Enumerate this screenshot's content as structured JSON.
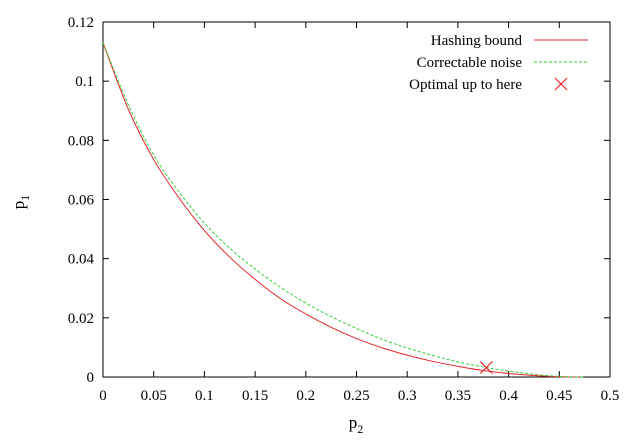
{
  "chart_data": {
    "type": "line",
    "xlabel": "p",
    "xlabel_sub": "2",
    "ylabel": "p",
    "ylabel_sub": "1",
    "xlim": [
      0,
      0.5
    ],
    "ylim": [
      0,
      0.12
    ],
    "grid": false,
    "legend_position": "top-right",
    "x_ticks": [
      {
        "value": 0,
        "label": "0"
      },
      {
        "value": 0.05,
        "label": "0.05"
      },
      {
        "value": 0.1,
        "label": "0.1"
      },
      {
        "value": 0.15,
        "label": "0.15"
      },
      {
        "value": 0.2,
        "label": "0.2"
      },
      {
        "value": 0.25,
        "label": "0.25"
      },
      {
        "value": 0.3,
        "label": "0.3"
      },
      {
        "value": 0.35,
        "label": "0.35"
      },
      {
        "value": 0.4,
        "label": "0.4"
      },
      {
        "value": 0.45,
        "label": "0.45"
      },
      {
        "value": 0.5,
        "label": "0.5"
      }
    ],
    "y_ticks": [
      {
        "value": 0,
        "label": "0"
      },
      {
        "value": 0.02,
        "label": "0.02"
      },
      {
        "value": 0.04,
        "label": "0.04"
      },
      {
        "value": 0.06,
        "label": "0.06"
      },
      {
        "value": 0.08,
        "label": "0.08"
      },
      {
        "value": 0.1,
        "label": "0.1"
      },
      {
        "value": 0.12,
        "label": "0.12"
      }
    ],
    "series": [
      {
        "name": "Hashing bound",
        "kind": "line",
        "style": "solid",
        "color": "#e8262c",
        "x": [
          0,
          0.025,
          0.05,
          0.075,
          0.1,
          0.125,
          0.15,
          0.175,
          0.2,
          0.225,
          0.25,
          0.275,
          0.3,
          0.325,
          0.35,
          0.375,
          0.4,
          0.425,
          0.45,
          0.47
        ],
        "y": [
          0.113,
          0.0905,
          0.0735,
          0.0605,
          0.0495,
          0.0405,
          0.033,
          0.0265,
          0.0213,
          0.0168,
          0.013,
          0.0099,
          0.0074,
          0.0053,
          0.0036,
          0.0022,
          0.0012,
          0.0005,
          0.0001,
          0
        ]
      },
      {
        "name": "Correctable noise",
        "kind": "line",
        "style": "dashed",
        "color": "#33cc33",
        "x": [
          0,
          0.025,
          0.05,
          0.075,
          0.1,
          0.125,
          0.15,
          0.175,
          0.2,
          0.225,
          0.25,
          0.275,
          0.3,
          0.325,
          0.35,
          0.375,
          0.4,
          0.425,
          0.45,
          0.475
        ],
        "y": [
          0.113,
          0.092,
          0.075,
          0.0625,
          0.052,
          0.0435,
          0.0365,
          0.0303,
          0.025,
          0.0204,
          0.0164,
          0.0128,
          0.0098,
          0.0073,
          0.0051,
          0.0034,
          0.002,
          0.0009,
          0.0002,
          0
        ]
      },
      {
        "name": "Optimal up to here",
        "kind": "marker",
        "marker": "x",
        "color": "#e8262c",
        "x": [
          0.378
        ],
        "y": [
          0.0032
        ]
      }
    ]
  }
}
